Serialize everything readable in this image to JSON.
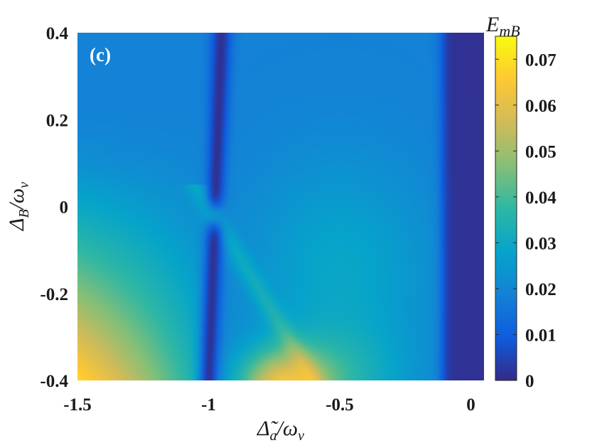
{
  "chart_data": {
    "type": "heatmap",
    "panel_label": "(c)",
    "xlabel": "Δ̃a/ων",
    "ylabel": "ΔB/ων",
    "xlim": [
      -1.5,
      0.05
    ],
    "ylim": [
      -0.4,
      0.4
    ],
    "x_ticks": [
      "-1.5",
      "-1",
      "-0.5",
      "0"
    ],
    "y_ticks": [
      "0.4",
      "0.2",
      "0",
      "-0.2",
      "-0.4"
    ],
    "x_tick_values": [
      -1.5,
      -1,
      -0.5,
      0
    ],
    "y_tick_values": [
      0.4,
      0.2,
      0,
      -0.2,
      -0.4
    ],
    "colorbar": {
      "label": "EmB",
      "min": 0,
      "max": 0.075,
      "ticks": [
        "0",
        "0.01",
        "0.02",
        "0.03",
        "0.04",
        "0.05",
        "0.06",
        "0.07"
      ],
      "tick_values": [
        0,
        0.01,
        0.02,
        0.03,
        0.04,
        0.05,
        0.06,
        0.07
      ],
      "colormap": "parula",
      "colormap_stops": [
        "#352a87",
        "#0f5cdd",
        "#1481d6",
        "#06a4ca",
        "#2eb7a4",
        "#87bf77",
        "#d1bb59",
        "#fec832",
        "#f9fb0e"
      ]
    },
    "grid": false,
    "regions": [
      {
        "description": "high entanglement at bottom-left",
        "x": -1.4,
        "y": -0.38,
        "value": 0.073
      },
      {
        "description": "dark resonance band near x=-1",
        "x": -0.97,
        "y": 0.2,
        "value": 0.003
      },
      {
        "description": "near-zero band near x=0",
        "x": -0.02,
        "y": 0.0,
        "value": 0.002
      },
      {
        "description": "secondary maximum near bottom centre",
        "x": -0.7,
        "y": -0.38,
        "value": 0.058
      }
    ]
  }
}
